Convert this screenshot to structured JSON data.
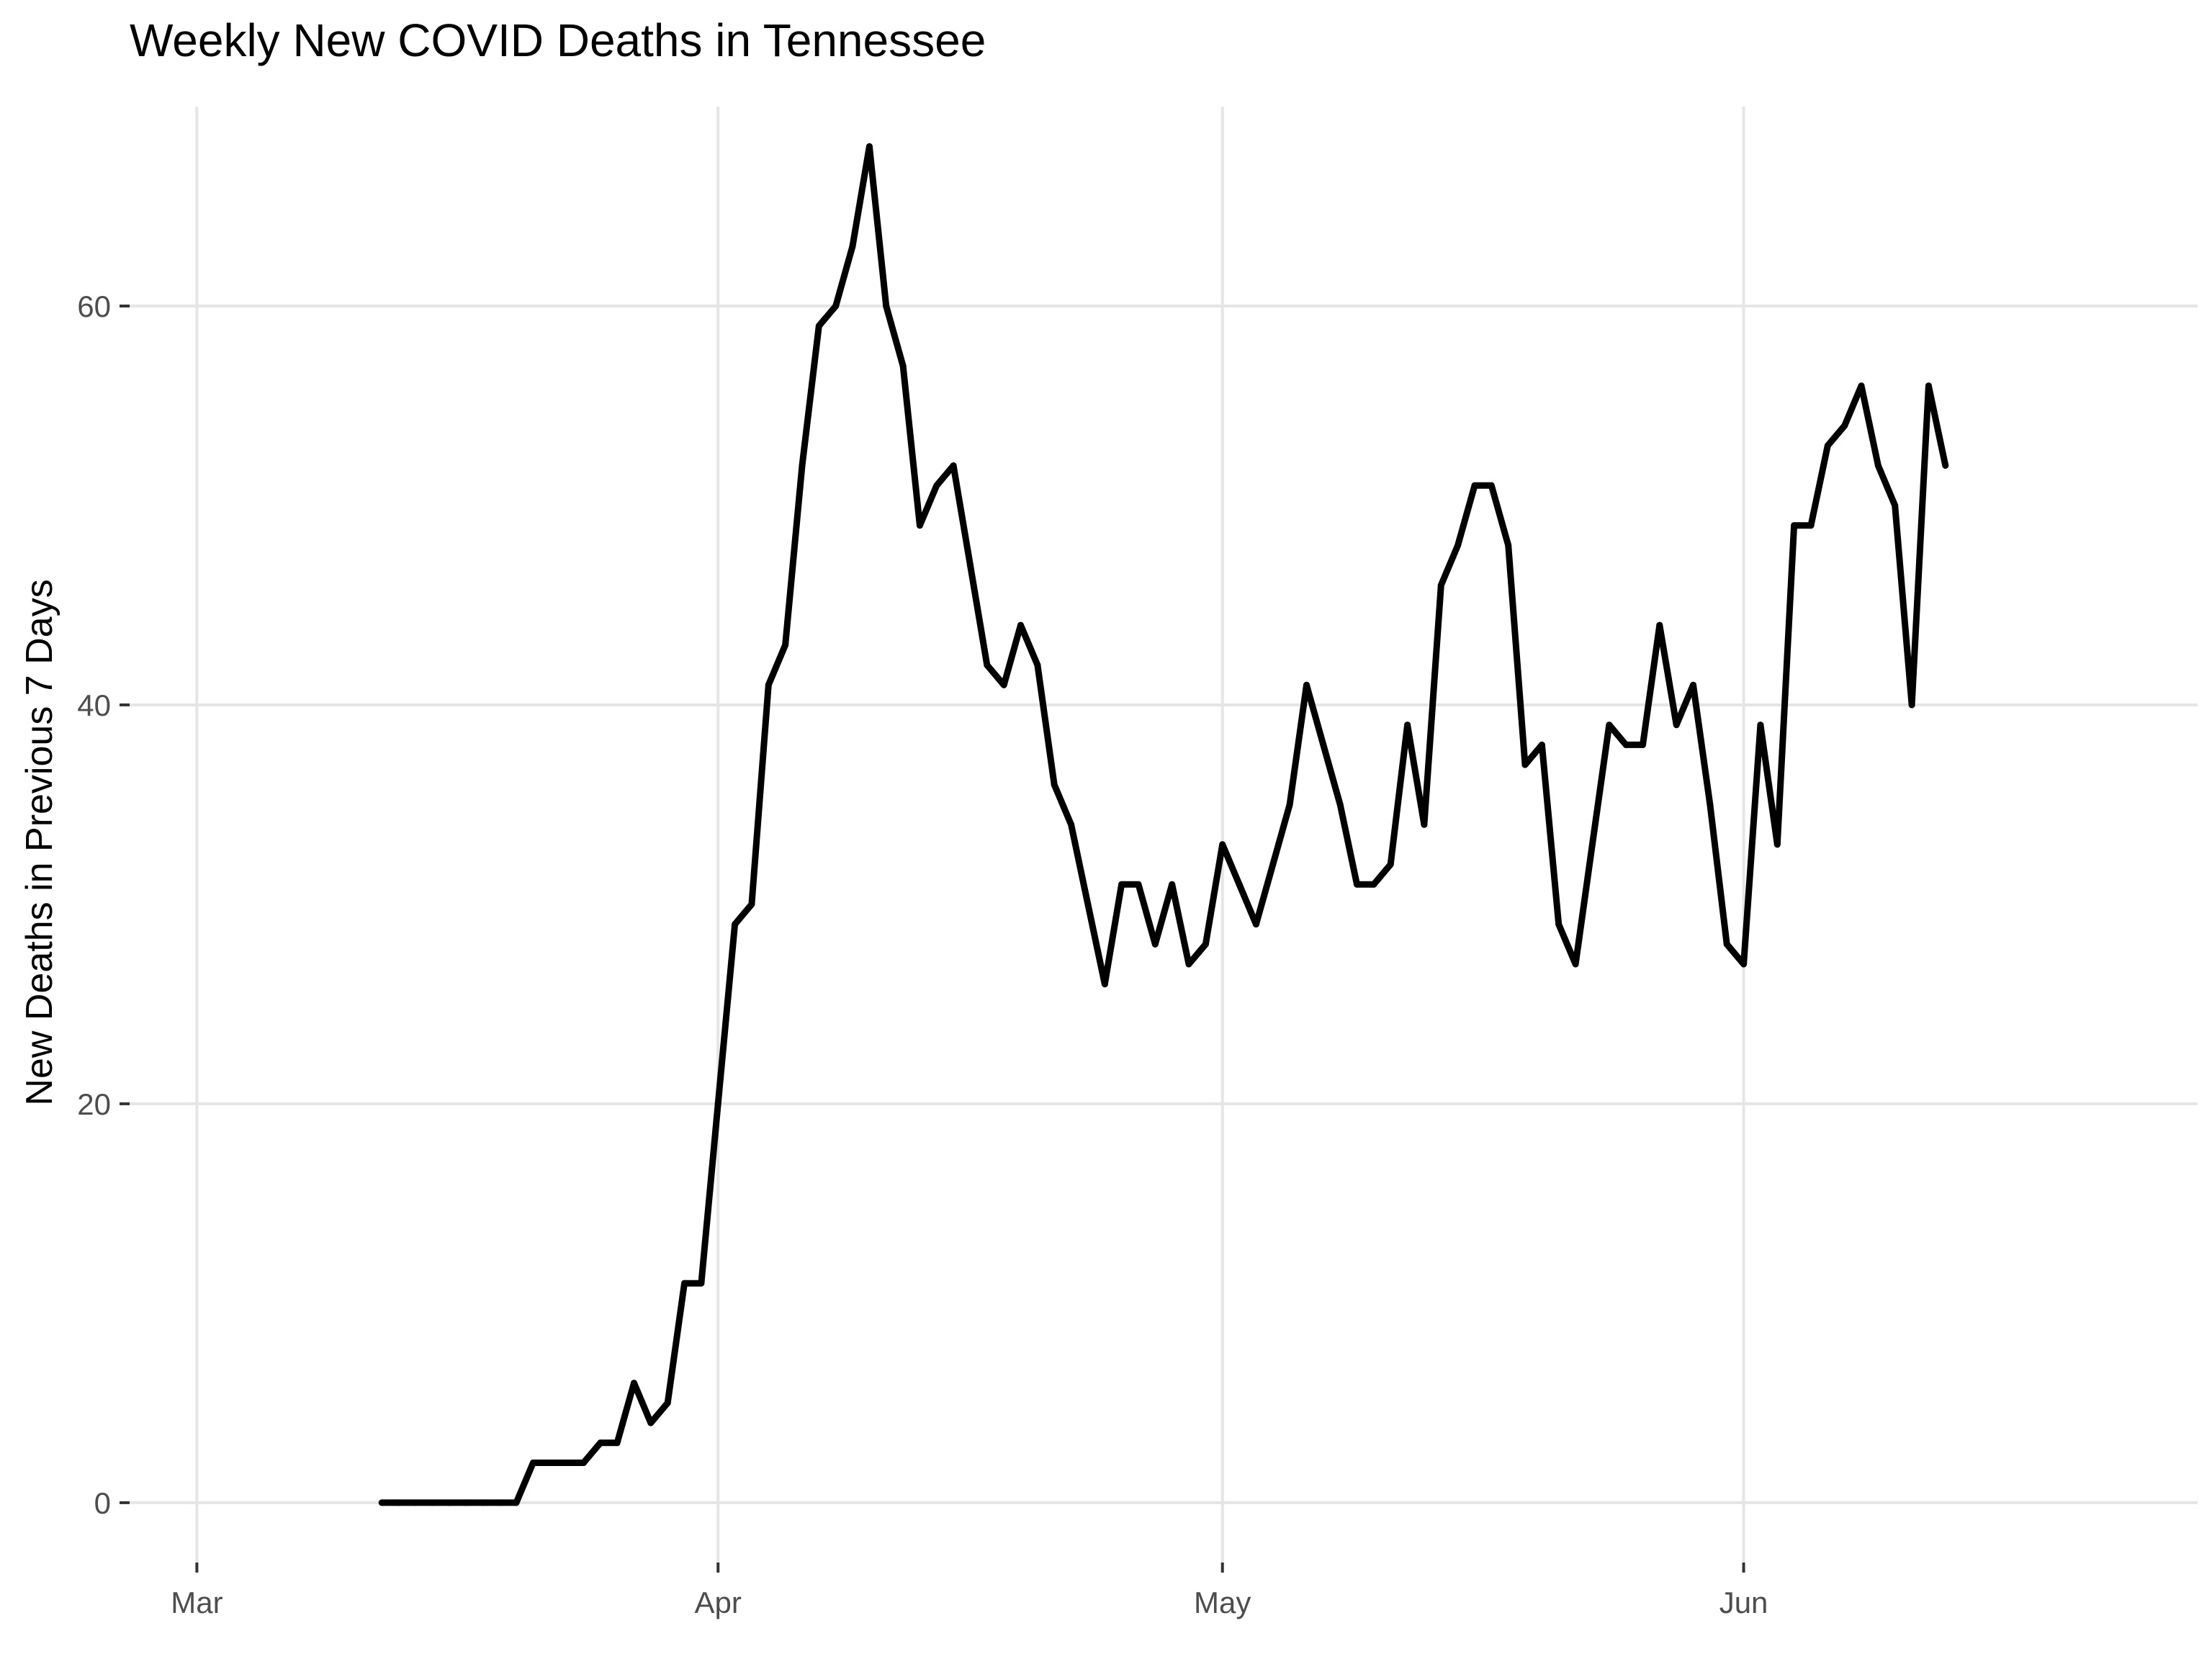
{
  "chart_data": {
    "type": "line",
    "title": "Weekly New COVID Deaths in Tennessee",
    "xlabel": "",
    "ylabel": "New Deaths in Previous 7 Days",
    "x_tick_labels": [
      {
        "date": "2020-03-01",
        "label": "Mar"
      },
      {
        "date": "2020-04-01",
        "label": "Apr"
      },
      {
        "date": "2020-05-01",
        "label": "May"
      },
      {
        "date": "2020-06-01",
        "label": "Jun"
      }
    ],
    "y_ticks": [
      0,
      20,
      40,
      60
    ],
    "xlim": [
      "2020-02-26",
      "2020-06-28"
    ],
    "ylim": [
      -3,
      70
    ],
    "grid": true,
    "legend": "none",
    "line_color": "#000000",
    "series": [
      {
        "x": [
          "2020-03-12",
          "2020-03-13",
          "2020-03-14",
          "2020-03-15",
          "2020-03-16",
          "2020-03-17",
          "2020-03-18",
          "2020-03-19",
          "2020-03-20",
          "2020-03-21",
          "2020-03-22",
          "2020-03-23",
          "2020-03-24",
          "2020-03-25",
          "2020-03-26",
          "2020-03-27",
          "2020-03-28",
          "2020-03-29",
          "2020-03-30",
          "2020-03-31",
          "2020-04-01",
          "2020-04-02",
          "2020-04-03",
          "2020-04-04",
          "2020-04-05",
          "2020-04-06",
          "2020-04-07",
          "2020-04-08",
          "2020-04-09",
          "2020-04-10",
          "2020-04-11",
          "2020-04-12",
          "2020-04-13",
          "2020-04-14",
          "2020-04-15",
          "2020-04-16",
          "2020-04-17",
          "2020-04-18",
          "2020-04-19",
          "2020-04-20",
          "2020-04-21",
          "2020-04-22",
          "2020-04-23",
          "2020-04-24",
          "2020-04-25",
          "2020-04-26",
          "2020-04-27",
          "2020-04-28",
          "2020-04-29",
          "2020-04-30",
          "2020-05-01",
          "2020-05-02",
          "2020-05-03",
          "2020-05-04",
          "2020-05-05",
          "2020-05-06",
          "2020-05-07",
          "2020-05-08",
          "2020-05-09",
          "2020-05-10",
          "2020-05-11",
          "2020-05-12",
          "2020-05-13",
          "2020-05-14",
          "2020-05-15",
          "2020-05-16",
          "2020-05-17",
          "2020-05-18",
          "2020-05-19",
          "2020-05-20",
          "2020-05-21",
          "2020-05-22",
          "2020-05-23",
          "2020-05-24",
          "2020-05-25",
          "2020-05-26",
          "2020-05-27",
          "2020-05-28",
          "2020-05-29",
          "2020-05-30",
          "2020-05-31",
          "2020-06-01",
          "2020-06-02",
          "2020-06-03",
          "2020-06-04",
          "2020-06-05",
          "2020-06-06",
          "2020-06-07",
          "2020-06-08",
          "2020-06-09",
          "2020-06-10",
          "2020-06-11",
          "2020-06-12",
          "2020-06-13"
        ],
        "y": [
          0,
          0,
          0,
          0,
          0,
          0,
          0,
          0,
          0,
          2,
          2,
          2,
          2,
          3,
          3,
          6,
          4,
          5,
          11,
          11,
          20,
          29,
          30,
          41,
          43,
          52,
          59,
          60,
          63,
          68,
          60,
          57,
          49,
          51,
          52,
          47,
          42,
          41,
          44,
          42,
          36,
          34,
          30,
          26,
          31,
          31,
          28,
          31,
          27,
          28,
          33,
          31,
          29,
          32,
          35,
          41,
          38,
          35,
          31,
          31,
          32,
          39,
          34,
          46,
          48,
          51,
          51,
          48,
          37,
          38,
          29,
          27,
          33,
          39,
          38,
          38,
          44,
          39,
          41,
          35,
          28,
          27,
          39,
          33,
          49,
          49,
          53,
          54,
          56,
          52,
          50,
          40,
          56,
          52
        ]
      }
    ]
  }
}
